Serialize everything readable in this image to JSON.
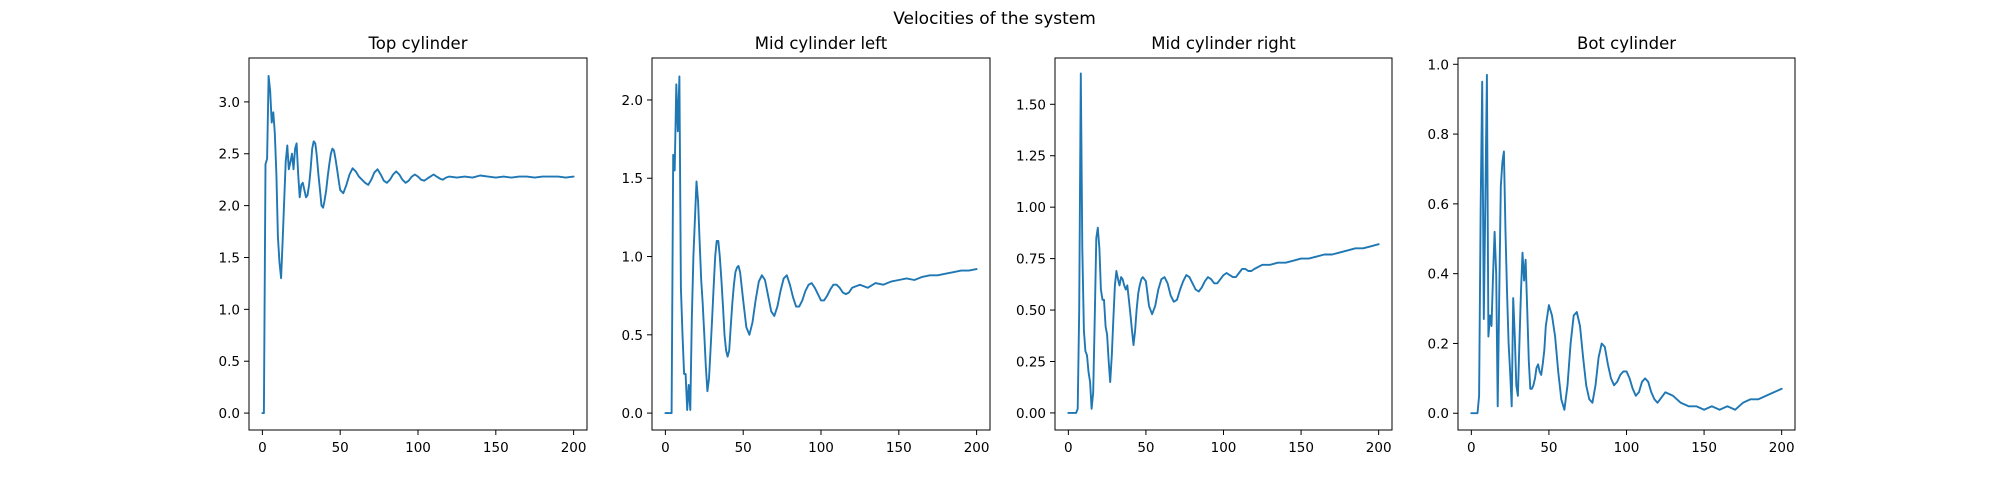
{
  "figure": {
    "title": "Velocities of the system"
  },
  "chart_data": [
    {
      "type": "line",
      "title": "Top cylinder",
      "xlabel": "",
      "ylabel": "",
      "xlim": [
        -8.6,
        208.6
      ],
      "ylim": [
        -0.163,
        3.423
      ],
      "xticks": [
        0,
        50,
        100,
        150,
        200
      ],
      "yticks": [
        0.0,
        0.5,
        1.0,
        1.5,
        2.0,
        2.5,
        3.0
      ],
      "ytick_labels": [
        "0.0",
        "0.5",
        "1.0",
        "1.5",
        "2.0",
        "2.5",
        "3.0"
      ],
      "color": "#1f77b4",
      "series": [
        {
          "x": [
            0,
            1,
            2,
            3,
            4,
            5,
            6,
            7,
            8,
            9,
            10,
            11,
            12,
            13,
            14,
            15,
            16,
            17,
            18,
            19,
            20,
            21,
            22,
            23,
            24,
            25,
            26,
            27,
            28,
            29,
            30,
            31,
            32,
            33,
            34,
            35,
            36,
            37,
            38,
            39,
            40,
            41,
            42,
            43,
            44,
            45,
            46,
            47,
            48,
            49,
            50,
            52,
            54,
            56,
            58,
            60,
            62,
            64,
            66,
            68,
            70,
            72,
            74,
            76,
            78,
            80,
            82,
            84,
            86,
            88,
            90,
            92,
            94,
            96,
            98,
            100,
            102,
            104,
            106,
            108,
            110,
            112,
            114,
            116,
            118,
            120,
            125,
            130,
            135,
            140,
            145,
            150,
            155,
            160,
            165,
            170,
            175,
            180,
            185,
            190,
            195,
            200
          ],
          "y": [
            0.0,
            0.0,
            2.4,
            2.45,
            3.25,
            3.1,
            2.8,
            2.9,
            2.7,
            2.3,
            1.7,
            1.45,
            1.3,
            1.65,
            2.05,
            2.42,
            2.58,
            2.35,
            2.42,
            2.5,
            2.35,
            2.55,
            2.6,
            2.3,
            2.08,
            2.2,
            2.22,
            2.15,
            2.08,
            2.1,
            2.2,
            2.35,
            2.55,
            2.62,
            2.6,
            2.48,
            2.3,
            2.15,
            2.0,
            1.98,
            2.05,
            2.15,
            2.28,
            2.4,
            2.5,
            2.55,
            2.53,
            2.45,
            2.35,
            2.25,
            2.15,
            2.12,
            2.2,
            2.3,
            2.36,
            2.33,
            2.28,
            2.25,
            2.22,
            2.2,
            2.25,
            2.32,
            2.35,
            2.3,
            2.24,
            2.22,
            2.25,
            2.3,
            2.33,
            2.3,
            2.25,
            2.22,
            2.24,
            2.28,
            2.3,
            2.28,
            2.25,
            2.24,
            2.26,
            2.28,
            2.3,
            2.28,
            2.26,
            2.25,
            2.27,
            2.28,
            2.27,
            2.28,
            2.27,
            2.29,
            2.28,
            2.27,
            2.28,
            2.27,
            2.28,
            2.28,
            2.27,
            2.28,
            2.28,
            2.28,
            2.27,
            2.28
          ]
        }
      ]
    },
    {
      "type": "line",
      "title": "Mid cylinder left",
      "xlabel": "",
      "ylabel": "",
      "xlim": [
        -8.6,
        208.6
      ],
      "ylim": [
        -0.108,
        2.268
      ],
      "xticks": [
        0,
        50,
        100,
        150,
        200
      ],
      "yticks": [
        0.0,
        0.5,
        1.0,
        1.5,
        2.0
      ],
      "ytick_labels": [
        "0.0",
        "0.5",
        "1.0",
        "1.5",
        "2.0"
      ],
      "color": "#1f77b4",
      "series": [
        {
          "x": [
            0,
            1,
            2,
            3,
            4,
            5,
            6,
            7,
            8,
            9,
            10,
            11,
            12,
            13,
            14,
            15,
            16,
            17,
            18,
            19,
            20,
            21,
            22,
            23,
            24,
            25,
            26,
            27,
            28,
            29,
            30,
            31,
            32,
            33,
            34,
            35,
            36,
            37,
            38,
            39,
            40,
            41,
            42,
            43,
            44,
            45,
            46,
            47,
            48,
            50,
            52,
            54,
            56,
            58,
            60,
            62,
            64,
            66,
            68,
            70,
            72,
            74,
            76,
            78,
            80,
            82,
            84,
            86,
            88,
            90,
            92,
            94,
            96,
            98,
            100,
            102,
            104,
            106,
            108,
            110,
            112,
            114,
            116,
            118,
            120,
            125,
            130,
            135,
            140,
            145,
            150,
            155,
            160,
            165,
            170,
            175,
            180,
            185,
            190,
            195,
            200
          ],
          "y": [
            0.0,
            0.0,
            0.0,
            0.0,
            0.0,
            1.65,
            1.55,
            2.1,
            1.8,
            2.15,
            0.8,
            0.5,
            0.25,
            0.25,
            0.02,
            0.18,
            0.02,
            0.6,
            1.0,
            1.25,
            1.48,
            1.35,
            1.1,
            0.85,
            0.7,
            0.5,
            0.3,
            0.14,
            0.22,
            0.4,
            0.6,
            0.8,
            1.0,
            1.1,
            1.1,
            1.0,
            0.85,
            0.68,
            0.5,
            0.4,
            0.36,
            0.4,
            0.55,
            0.7,
            0.82,
            0.9,
            0.93,
            0.94,
            0.9,
            0.72,
            0.55,
            0.5,
            0.58,
            0.72,
            0.84,
            0.88,
            0.85,
            0.75,
            0.65,
            0.62,
            0.68,
            0.78,
            0.86,
            0.88,
            0.82,
            0.74,
            0.68,
            0.68,
            0.72,
            0.78,
            0.82,
            0.83,
            0.8,
            0.76,
            0.72,
            0.72,
            0.75,
            0.79,
            0.82,
            0.82,
            0.8,
            0.77,
            0.76,
            0.77,
            0.8,
            0.82,
            0.8,
            0.83,
            0.82,
            0.84,
            0.85,
            0.86,
            0.85,
            0.87,
            0.88,
            0.88,
            0.89,
            0.9,
            0.91,
            0.91,
            0.92
          ]
        }
      ]
    },
    {
      "type": "line",
      "title": "Mid cylinder right",
      "xlabel": "",
      "ylabel": "",
      "xlim": [
        -8.6,
        208.6
      ],
      "ylim": [
        -0.083,
        1.725
      ],
      "xticks": [
        0,
        50,
        100,
        150,
        200
      ],
      "yticks": [
        0.0,
        0.25,
        0.5,
        0.75,
        1.0,
        1.25,
        1.5
      ],
      "ytick_labels": [
        "0.00",
        "0.25",
        "0.50",
        "0.75",
        "1.00",
        "1.25",
        "1.50"
      ],
      "color": "#1f77b4",
      "series": [
        {
          "x": [
            0,
            1,
            2,
            3,
            4,
            5,
            6,
            7,
            8,
            9,
            10,
            11,
            12,
            13,
            14,
            15,
            16,
            17,
            18,
            19,
            20,
            21,
            22,
            23,
            24,
            25,
            26,
            27,
            28,
            29,
            30,
            31,
            32,
            33,
            34,
            35,
            36,
            37,
            38,
            39,
            40,
            41,
            42,
            43,
            44,
            45,
            46,
            47,
            48,
            50,
            52,
            54,
            56,
            58,
            60,
            62,
            64,
            66,
            68,
            70,
            72,
            74,
            76,
            78,
            80,
            82,
            84,
            86,
            88,
            90,
            92,
            94,
            96,
            98,
            100,
            102,
            104,
            106,
            108,
            110,
            112,
            114,
            116,
            118,
            120,
            125,
            130,
            135,
            140,
            145,
            150,
            155,
            160,
            165,
            170,
            175,
            180,
            185,
            190,
            195,
            200
          ],
          "y": [
            0.0,
            0.0,
            0.0,
            0.0,
            0.0,
            0.0,
            0.02,
            0.5,
            1.65,
            0.8,
            0.4,
            0.3,
            0.28,
            0.2,
            0.15,
            0.02,
            0.1,
            0.45,
            0.85,
            0.9,
            0.8,
            0.6,
            0.55,
            0.55,
            0.42,
            0.38,
            0.25,
            0.15,
            0.28,
            0.45,
            0.62,
            0.69,
            0.65,
            0.62,
            0.66,
            0.65,
            0.62,
            0.6,
            0.62,
            0.55,
            0.48,
            0.4,
            0.33,
            0.4,
            0.5,
            0.58,
            0.62,
            0.65,
            0.66,
            0.64,
            0.52,
            0.48,
            0.52,
            0.6,
            0.65,
            0.66,
            0.63,
            0.57,
            0.54,
            0.55,
            0.6,
            0.64,
            0.67,
            0.66,
            0.63,
            0.6,
            0.59,
            0.61,
            0.64,
            0.66,
            0.65,
            0.63,
            0.63,
            0.65,
            0.67,
            0.68,
            0.67,
            0.66,
            0.66,
            0.68,
            0.7,
            0.7,
            0.69,
            0.69,
            0.7,
            0.72,
            0.72,
            0.73,
            0.73,
            0.74,
            0.75,
            0.75,
            0.76,
            0.77,
            0.77,
            0.78,
            0.79,
            0.8,
            0.8,
            0.81,
            0.82
          ]
        }
      ]
    },
    {
      "type": "line",
      "title": "Bot cylinder",
      "xlabel": "",
      "ylabel": "",
      "xlim": [
        -8.6,
        208.6
      ],
      "ylim": [
        -0.048,
        1.018
      ],
      "xticks": [
        0,
        50,
        100,
        150,
        200
      ],
      "yticks": [
        0.0,
        0.2,
        0.4,
        0.6,
        0.8,
        1.0
      ],
      "ytick_labels": [
        "0.0",
        "0.2",
        "0.4",
        "0.6",
        "0.8",
        "1.0"
      ],
      "color": "#1f77b4",
      "series": [
        {
          "x": [
            0,
            1,
            2,
            3,
            4,
            5,
            6,
            7,
            8,
            9,
            10,
            11,
            12,
            13,
            14,
            15,
            16,
            17,
            18,
            19,
            20,
            21,
            22,
            23,
            24,
            25,
            26,
            27,
            28,
            29,
            30,
            31,
            32,
            33,
            34,
            35,
            36,
            37,
            38,
            39,
            40,
            41,
            42,
            43,
            44,
            45,
            46,
            47,
            48,
            50,
            52,
            54,
            56,
            58,
            60,
            62,
            64,
            66,
            68,
            70,
            72,
            74,
            76,
            78,
            80,
            82,
            84,
            86,
            88,
            90,
            92,
            94,
            96,
            98,
            100,
            102,
            104,
            106,
            108,
            110,
            112,
            114,
            116,
            118,
            120,
            125,
            130,
            135,
            140,
            145,
            150,
            155,
            160,
            165,
            170,
            175,
            180,
            185,
            190,
            195,
            200
          ],
          "y": [
            0.0,
            0.0,
            0.0,
            0.0,
            0.0,
            0.05,
            0.6,
            0.95,
            0.27,
            0.6,
            0.97,
            0.22,
            0.28,
            0.25,
            0.4,
            0.52,
            0.4,
            0.02,
            0.35,
            0.65,
            0.72,
            0.75,
            0.52,
            0.35,
            0.2,
            0.12,
            0.02,
            0.33,
            0.22,
            0.08,
            0.05,
            0.2,
            0.35,
            0.46,
            0.38,
            0.44,
            0.3,
            0.15,
            0.07,
            0.07,
            0.08,
            0.1,
            0.13,
            0.14,
            0.12,
            0.11,
            0.14,
            0.18,
            0.25,
            0.31,
            0.28,
            0.22,
            0.12,
            0.04,
            0.01,
            0.08,
            0.2,
            0.28,
            0.29,
            0.25,
            0.16,
            0.08,
            0.04,
            0.03,
            0.08,
            0.16,
            0.2,
            0.19,
            0.14,
            0.1,
            0.08,
            0.09,
            0.11,
            0.12,
            0.12,
            0.1,
            0.07,
            0.05,
            0.06,
            0.09,
            0.1,
            0.09,
            0.06,
            0.04,
            0.03,
            0.06,
            0.05,
            0.03,
            0.02,
            0.02,
            0.01,
            0.02,
            0.01,
            0.02,
            0.01,
            0.03,
            0.04,
            0.04,
            0.05,
            0.06,
            0.07
          ]
        }
      ]
    }
  ]
}
